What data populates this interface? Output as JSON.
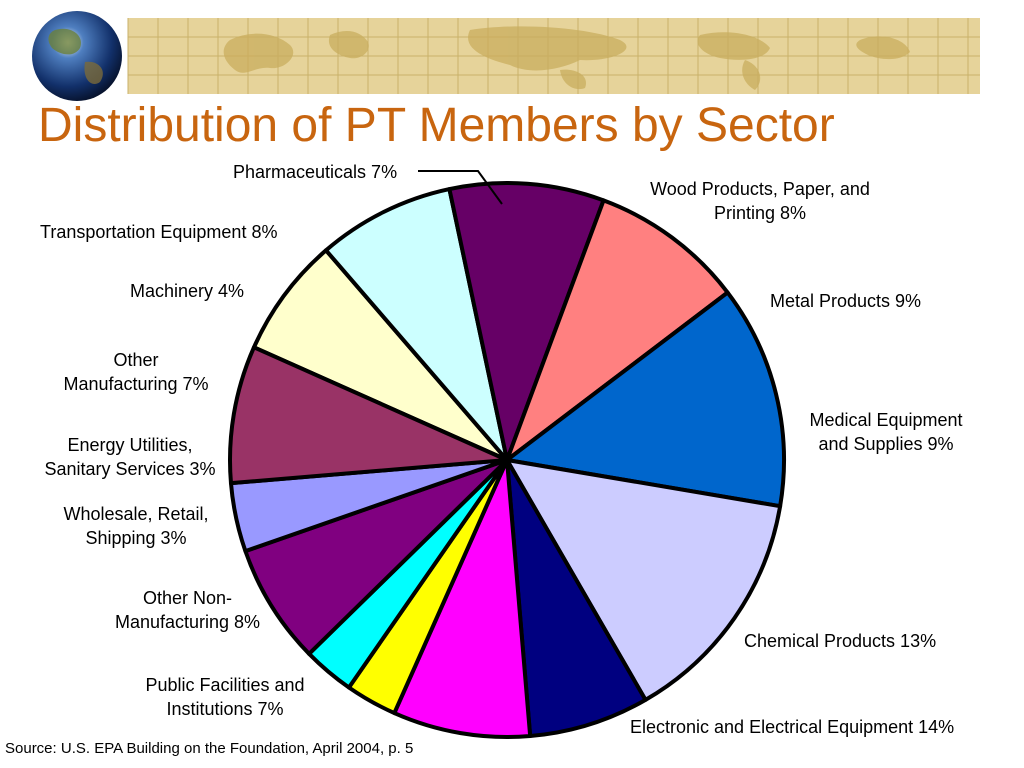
{
  "slide": {
    "title": "Distribution of PT Members by Sector",
    "title_color": "#C8650F",
    "banner_color": "#E6D39A",
    "source": "Source: U.S. EPA Building on the Foundation, April 2004, p. 5"
  },
  "chart_data": {
    "type": "pie",
    "title": "Distribution of PT Members by Sector",
    "unit": "%",
    "slices": [
      {
        "label": "Pharmaceuticals 7%",
        "value": 7,
        "color": "#FFFFCC"
      },
      {
        "label": "Wood Products, Paper, and Printing 8%",
        "value": 8,
        "color": "#CCFFFF"
      },
      {
        "label": "Metal Products 9%",
        "value": 9,
        "color": "#660066"
      },
      {
        "label": "Medical Equipment and Supplies 9%",
        "value": 9,
        "color": "#FF8080"
      },
      {
        "label": "Chemical Products 13%",
        "value": 13,
        "color": "#0066CC"
      },
      {
        "label": "Electronic and Electrical Equipment 14%",
        "value": 14,
        "color": "#CCCCFF"
      },
      {
        "label": "Public Facilities and Institutions 7%",
        "value": 7,
        "color": "#000080"
      },
      {
        "label": "Other Non-Manufacturing 8%",
        "value": 8,
        "color": "#FF00FF"
      },
      {
        "label": "Wholesale, Retail, Shipping 3%",
        "value": 3,
        "color": "#FFFF00"
      },
      {
        "label": "Energy Utilities, Sanitary Services 3%",
        "value": 3,
        "color": "#00FFFF"
      },
      {
        "label": "Other Manufacturing 7%",
        "value": 7,
        "color": "#800080"
      },
      {
        "label": "Machinery 4%",
        "value": 4,
        "color": "#9999FF"
      },
      {
        "label": "Transportation Equipment 8%",
        "value": 8,
        "color": "#993366"
      }
    ],
    "legend": "none"
  }
}
